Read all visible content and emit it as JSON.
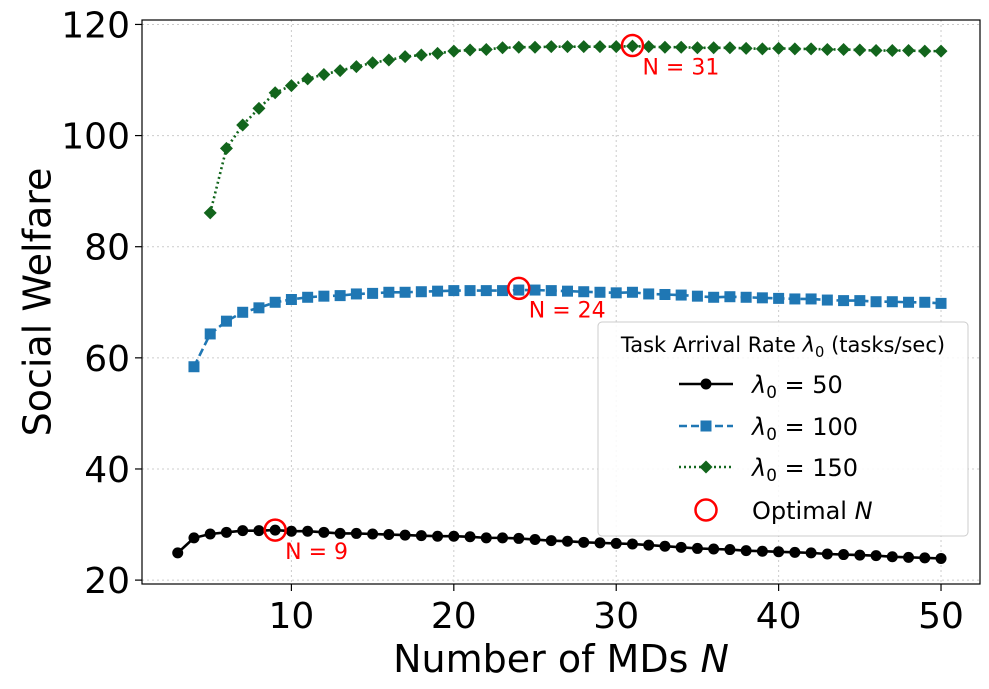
{
  "chart_data": {
    "type": "line",
    "title": "",
    "xlabel": "Number of MDs N",
    "ylabel": "Social Welfare",
    "xlim": [
      0.8,
      52.4
    ],
    "ylim": [
      19.3,
      120.8
    ],
    "xticks": [
      10,
      20,
      30,
      40,
      50
    ],
    "yticks": [
      20,
      40,
      60,
      80,
      100,
      120
    ],
    "grid": true,
    "legend": {
      "title": "Task Arrival Rate λ0 (tasks/sec)",
      "position": "center-right",
      "entries": [
        "λ0 = 50",
        "λ0 = 100",
        "λ0 = 150",
        "Optimal N"
      ]
    },
    "series": [
      {
        "name": "λ0 = 50",
        "color": "#000000",
        "linestyle": "solid",
        "marker": "circle",
        "x": [
          3,
          4,
          5,
          6,
          7,
          8,
          9,
          10,
          11,
          12,
          13,
          14,
          15,
          16,
          17,
          18,
          19,
          20,
          21,
          22,
          23,
          24,
          25,
          26,
          27,
          28,
          29,
          30,
          31,
          32,
          33,
          34,
          35,
          36,
          37,
          38,
          39,
          40,
          41,
          42,
          43,
          44,
          45,
          46,
          47,
          48,
          49,
          50
        ],
        "y": [
          24.9,
          27.6,
          28.3,
          28.6,
          28.9,
          28.9,
          29.0,
          28.8,
          28.8,
          28.6,
          28.4,
          28.4,
          28.3,
          28.2,
          28.1,
          28.0,
          27.9,
          27.9,
          27.8,
          27.6,
          27.6,
          27.5,
          27.3,
          27.1,
          27.0,
          26.8,
          26.7,
          26.6,
          26.5,
          26.3,
          26.1,
          25.9,
          25.7,
          25.6,
          25.5,
          25.3,
          25.2,
          25.1,
          25.0,
          24.9,
          24.7,
          24.6,
          24.5,
          24.4,
          24.2,
          24.1,
          24.0,
          23.9
        ]
      },
      {
        "name": "λ0 = 100",
        "color": "#1f77b4",
        "linestyle": "dashed",
        "marker": "square",
        "x": [
          4,
          5,
          6,
          7,
          8,
          9,
          10,
          11,
          12,
          13,
          14,
          15,
          16,
          17,
          18,
          19,
          20,
          21,
          22,
          23,
          24,
          25,
          26,
          27,
          28,
          29,
          30,
          31,
          32,
          33,
          34,
          35,
          36,
          37,
          38,
          39,
          40,
          41,
          42,
          43,
          44,
          45,
          46,
          47,
          48,
          49,
          50
        ],
        "y": [
          58.4,
          64.3,
          66.6,
          68.2,
          69.0,
          70.0,
          70.5,
          70.9,
          71.1,
          71.2,
          71.5,
          71.6,
          71.8,
          71.8,
          71.9,
          72.0,
          72.1,
          72.1,
          72.1,
          72.1,
          72.2,
          72.2,
          72.1,
          72.0,
          71.9,
          71.8,
          71.7,
          71.8,
          71.5,
          71.4,
          71.3,
          71.1,
          70.9,
          71.0,
          70.9,
          70.8,
          70.7,
          70.6,
          70.6,
          70.4,
          70.3,
          70.3,
          70.1,
          70.1,
          70.0,
          70.0,
          69.8
        ]
      },
      {
        "name": "λ0 = 150",
        "color": "#12651c",
        "linestyle": "dotted",
        "marker": "diamond",
        "x": [
          5,
          6,
          7,
          8,
          9,
          10,
          11,
          12,
          13,
          14,
          15,
          16,
          17,
          18,
          19,
          20,
          21,
          22,
          23,
          24,
          25,
          26,
          27,
          28,
          29,
          30,
          31,
          32,
          33,
          34,
          35,
          36,
          37,
          38,
          39,
          40,
          41,
          42,
          43,
          44,
          45,
          46,
          47,
          48,
          49,
          50
        ],
        "y": [
          86.1,
          97.7,
          101.9,
          104.9,
          107.7,
          109.0,
          110.2,
          111.0,
          111.7,
          112.4,
          113.1,
          113.6,
          114.2,
          114.5,
          114.8,
          115.2,
          115.4,
          115.5,
          115.8,
          115.9,
          115.9,
          116.0,
          116.0,
          116.0,
          116.0,
          116.0,
          116.1,
          116.0,
          115.9,
          115.9,
          115.8,
          115.8,
          115.8,
          115.7,
          115.6,
          115.7,
          115.6,
          115.6,
          115.5,
          115.5,
          115.4,
          115.3,
          115.3,
          115.3,
          115.2,
          115.2
        ]
      }
    ],
    "optimal_points": [
      {
        "x": 9,
        "y": 29.0,
        "label": "N = 9"
      },
      {
        "x": 24,
        "y": 72.5,
        "label": "N = 24"
      },
      {
        "x": 31,
        "y": 116.2,
        "label": "N = 31"
      }
    ],
    "annotation_color": "#ff0000"
  }
}
